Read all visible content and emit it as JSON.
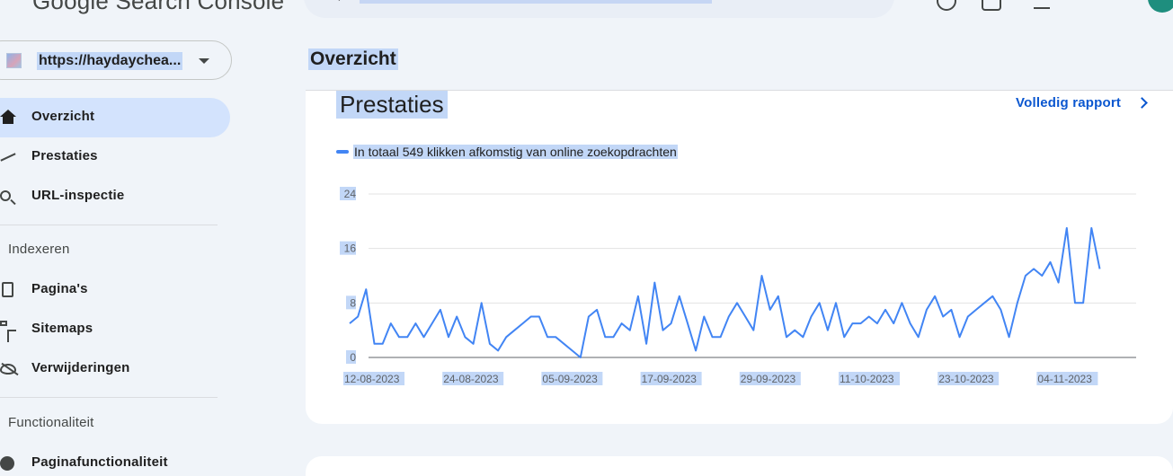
{
  "header": {
    "logo_text_google": "Google",
    "logo_text_product": "Search Console"
  },
  "property": {
    "url": "https://haydaychea..."
  },
  "sidebar": {
    "items": [
      {
        "label": "Overzicht",
        "icon": "home-icon",
        "active": true
      },
      {
        "label": "Prestaties",
        "icon": "trending-up-icon"
      },
      {
        "label": "URL-inspectie",
        "icon": "search-icon"
      }
    ],
    "sections": [
      {
        "label": "Indexeren",
        "items": [
          {
            "label": "Pagina's",
            "icon": "page-icon"
          },
          {
            "label": "Sitemaps",
            "icon": "sitemap-icon"
          },
          {
            "label": "Verwijderingen",
            "icon": "visibility-off-icon"
          }
        ]
      },
      {
        "label": "Functionaliteit",
        "items": [
          {
            "label": "Paginafunctionaliteit",
            "icon": "page-experience-icon"
          }
        ]
      }
    ]
  },
  "main": {
    "page_title": "Overzicht",
    "performance": {
      "title": "Prestaties",
      "full_report_label": "Volledig rapport",
      "legend_text": "In totaal 549 klikken afkomstig van online zoekopdrachten",
      "accent_color": "#4285f4"
    }
  },
  "chart_data": {
    "type": "line",
    "title": "",
    "xlabel": "",
    "ylabel": "",
    "ylim": [
      0,
      24
    ],
    "y_ticks": [
      0,
      8,
      16,
      24
    ],
    "x_tick_labels": [
      "12-08-2023",
      "24-08-2023",
      "05-09-2023",
      "17-09-2023",
      "29-09-2023",
      "11-10-2023",
      "23-10-2023",
      "04-11-2023"
    ],
    "grid": true,
    "series": [
      {
        "name": "In totaal 549 klikken afkomstig van online zoekopdrachten",
        "color": "#4285f4",
        "x_start": "12-08-2023",
        "x_step_days": 1,
        "values": [
          5,
          6,
          10,
          2,
          2,
          5,
          3,
          3,
          5,
          3,
          5,
          7,
          3,
          6,
          3,
          2,
          8,
          2,
          1,
          3,
          4,
          5,
          6,
          6,
          3,
          3,
          2,
          1,
          0,
          6,
          7,
          3,
          3,
          5,
          4,
          9,
          2,
          11,
          4,
          5,
          9,
          5,
          1,
          6,
          3,
          3,
          6,
          8,
          6,
          4,
          12,
          7,
          9,
          3,
          4,
          3,
          6,
          8,
          4,
          8,
          3,
          5,
          5,
          6,
          5,
          7,
          5,
          8,
          5,
          3,
          7,
          9,
          6,
          7,
          3,
          6,
          7,
          8,
          9,
          7,
          3,
          8,
          12,
          13,
          12,
          14,
          11,
          19,
          8,
          8,
          19,
          13
        ]
      }
    ]
  }
}
